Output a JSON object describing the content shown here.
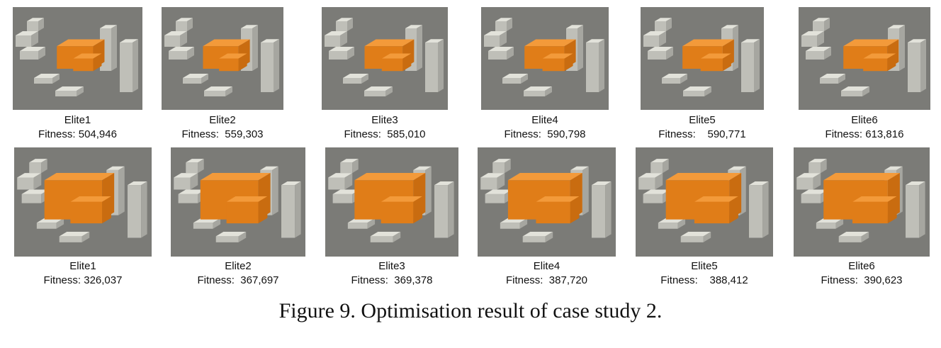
{
  "rows": [
    {
      "items": [
        {
          "name": "Elite1",
          "fitness": "Fitness: 504,946"
        },
        {
          "name": "Elite2",
          "fitness": "Fitness:  559,303"
        },
        {
          "name": "Elite3",
          "fitness": "Fitness:  585,010"
        },
        {
          "name": "Elite4",
          "fitness": "Fitness:  590,798"
        },
        {
          "name": "Elite5",
          "fitness": "Fitness:    590,771"
        },
        {
          "name": "Elite6",
          "fitness": "Fitness: 613,816"
        }
      ]
    },
    {
      "items": [
        {
          "name": "Elite1",
          "fitness": "Fitness: 326,037"
        },
        {
          "name": "Elite2",
          "fitness": "Fitness:  367,697"
        },
        {
          "name": "Elite3",
          "fitness": "Fitness:  369,378"
        },
        {
          "name": "Elite4",
          "fitness": "Fitness:  387,720"
        },
        {
          "name": "Elite5",
          "fitness": "Fitness:    388,412"
        },
        {
          "name": "Elite6",
          "fitness": "Fitness:  390,623"
        }
      ]
    }
  ],
  "caption": "Figure 9. Optimisation result of case study 2.",
  "colors": {
    "massing": "#f08a24",
    "ground": "#7b7b77",
    "context": "#dcdcd4"
  }
}
